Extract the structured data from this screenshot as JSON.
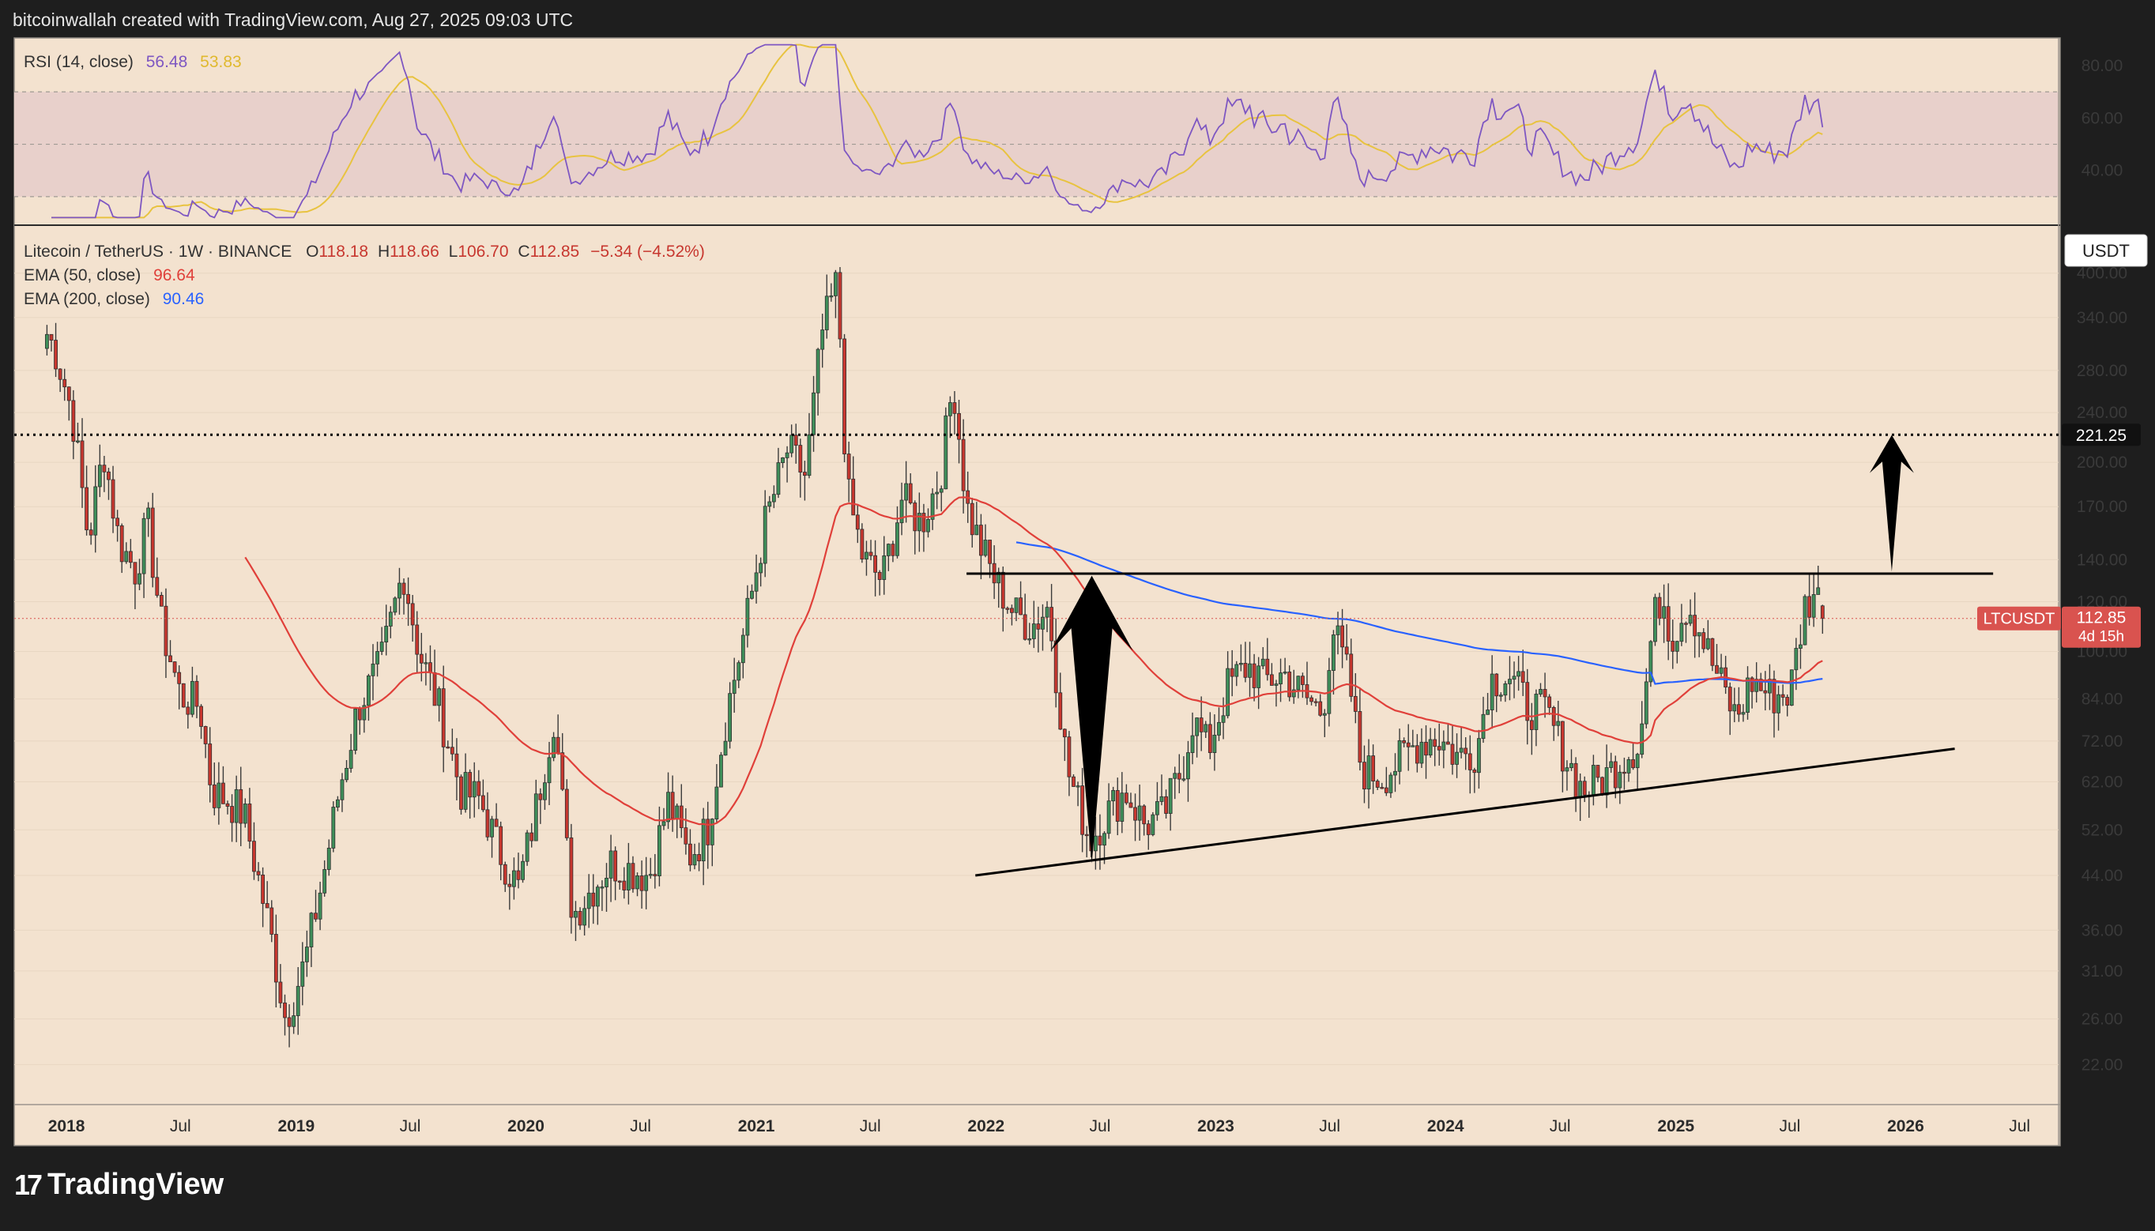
{
  "attribution": "bitcoinwallah created with TradingView.com, Aug 27, 2025 09:03 UTC",
  "brand": "TradingView",
  "colors": {
    "background": "#f3e2cf",
    "frame": "#1e1e1e",
    "bull": "#3f8f5a",
    "bear": "#c7372f",
    "rsi": "#7e57c2",
    "rsi_ma": "#e8c340",
    "ema50": "#e0403a",
    "ema200": "#2962ff",
    "price_tag": "#d9534f"
  },
  "rsi_pane": {
    "label": "RSI (14, close)",
    "value1": "56.48",
    "value2": "53.83",
    "levels": {
      "upper": 70,
      "middle": 50,
      "lower": 30
    },
    "ticks": [
      "80.00",
      "60.00",
      "40.00"
    ]
  },
  "legend": {
    "symbol": "Litecoin / TetherUS · 1W · BINANCE",
    "o_label": "O",
    "o": "118.18",
    "h_label": "H",
    "h": "118.66",
    "l_label": "L",
    "l": "106.70",
    "c_label": "C",
    "c": "112.85",
    "change": "−5.34 (−4.52%)",
    "ema50_label": "EMA (50, close)",
    "ema50_value": "96.64",
    "ema200_label": "EMA (200, close)",
    "ema200_value": "90.46"
  },
  "currency_button": "USDT",
  "ticker": {
    "symbol": "LTCUSDT",
    "price": "112.85",
    "countdown": "4d 15h"
  },
  "resistance_label": "221.25",
  "chart_data": {
    "type": "candlestick",
    "symbol": "LTCUSDT",
    "timeframe": "1W",
    "y_scale": "log",
    "ylim": [
      19,
      470
    ],
    "xlim": [
      "2017-10-10",
      "2026-09-01"
    ],
    "y_ticks": [
      "400.00",
      "340.00",
      "280.00",
      "240.00",
      "200.00",
      "170.00",
      "140.00",
      "120.00",
      "100.00",
      "84.00",
      "72.00",
      "62.00",
      "52.00",
      "44.00",
      "36.00",
      "31.00",
      "26.00",
      "22.00"
    ],
    "x_ticks": [
      "2018",
      "Jul",
      "2019",
      "Jul",
      "2020",
      "Jul",
      "2021",
      "Jul",
      "2022",
      "Jul",
      "2023",
      "Jul",
      "2024",
      "Jul",
      "2025",
      "Jul",
      "2026",
      "Jul"
    ],
    "price_anchors": [
      [
        "2017-12-01",
        320
      ],
      [
        "2017-12-15",
        300
      ],
      [
        "2018-01-10",
        240
      ],
      [
        "2018-02-05",
        150
      ],
      [
        "2018-03-01",
        210
      ],
      [
        "2018-03-25",
        150
      ],
      [
        "2018-04-20",
        135
      ],
      [
        "2018-05-10",
        160
      ],
      [
        "2018-06-01",
        110
      ],
      [
        "2018-07-01",
        85
      ],
      [
        "2018-08-01",
        82
      ],
      [
        "2018-08-20",
        60
      ],
      [
        "2018-09-15",
        58
      ],
      [
        "2018-10-10",
        55
      ],
      [
        "2018-11-20",
        36
      ],
      [
        "2018-12-15",
        26
      ],
      [
        "2019-01-15",
        32
      ],
      [
        "2019-02-15",
        45
      ],
      [
        "2019-03-10",
        60
      ],
      [
        "2019-04-10",
        82
      ],
      [
        "2019-05-15",
        95
      ],
      [
        "2019-06-20",
        135
      ],
      [
        "2019-07-15",
        100
      ],
      [
        "2019-08-15",
        82
      ],
      [
        "2019-09-20",
        60
      ],
      [
        "2019-10-20",
        58
      ],
      [
        "2019-11-20",
        48
      ],
      [
        "2019-12-20",
        42
      ],
      [
        "2020-01-15",
        55
      ],
      [
        "2020-02-15",
        80
      ],
      [
        "2020-03-15",
        38
      ],
      [
        "2020-04-15",
        42
      ],
      [
        "2020-05-15",
        46
      ],
      [
        "2020-06-15",
        45
      ],
      [
        "2020-07-15",
        44
      ],
      [
        "2020-08-15",
        58
      ],
      [
        "2020-09-15",
        47
      ],
      [
        "2020-10-15",
        52
      ],
      [
        "2020-11-15",
        80
      ],
      [
        "2020-12-15",
        110
      ],
      [
        "2021-01-15",
        160
      ],
      [
        "2021-02-20",
        210
      ],
      [
        "2021-03-20",
        190
      ],
      [
        "2021-04-15",
        320
      ],
      [
        "2021-05-10",
        390
      ],
      [
        "2021-05-25",
        180
      ],
      [
        "2021-06-20",
        140
      ],
      [
        "2021-07-20",
        130
      ],
      [
        "2021-08-20",
        175
      ],
      [
        "2021-09-20",
        160
      ],
      [
        "2021-10-20",
        190
      ],
      [
        "2021-11-10",
        270
      ],
      [
        "2021-12-01",
        170
      ],
      [
        "2021-12-20",
        150
      ],
      [
        "2022-01-15",
        130
      ],
      [
        "2022-02-15",
        115
      ],
      [
        "2022-03-15",
        110
      ],
      [
        "2022-04-10",
        118
      ],
      [
        "2022-05-10",
        65
      ],
      [
        "2022-06-15",
        50
      ],
      [
        "2022-07-10",
        55
      ],
      [
        "2022-08-10",
        60
      ],
      [
        "2022-09-10",
        53
      ],
      [
        "2022-10-10",
        55
      ],
      [
        "2022-11-08",
        65
      ],
      [
        "2022-11-25",
        78
      ],
      [
        "2022-12-20",
        70
      ],
      [
        "2023-01-20",
        88
      ],
      [
        "2023-02-20",
        95
      ],
      [
        "2023-03-20",
        90
      ],
      [
        "2023-04-20",
        92
      ],
      [
        "2023-05-20",
        85
      ],
      [
        "2023-06-20",
        80
      ],
      [
        "2023-07-05",
        110
      ],
      [
        "2023-08-01",
        90
      ],
      [
        "2023-08-20",
        65
      ],
      [
        "2023-09-20",
        63
      ],
      [
        "2023-10-20",
        67
      ],
      [
        "2023-11-20",
        72
      ],
      [
        "2023-12-20",
        73
      ],
      [
        "2024-01-20",
        68
      ],
      [
        "2024-02-20",
        70
      ],
      [
        "2024-03-10",
        90
      ],
      [
        "2024-04-10",
        92
      ],
      [
        "2024-05-10",
        82
      ],
      [
        "2024-06-10",
        80
      ],
      [
        "2024-07-10",
        68
      ],
      [
        "2024-08-05",
        60
      ],
      [
        "2024-09-10",
        63
      ],
      [
        "2024-10-10",
        68
      ],
      [
        "2024-11-05",
        72
      ],
      [
        "2024-11-25",
        110
      ],
      [
        "2024-12-10",
        125
      ],
      [
        "2024-12-25",
        105
      ],
      [
        "2025-01-20",
        120
      ],
      [
        "2025-02-05",
        110
      ],
      [
        "2025-03-01",
        95
      ],
      [
        "2025-04-07",
        78
      ],
      [
        "2025-05-01",
        90
      ],
      [
        "2025-06-01",
        85
      ],
      [
        "2025-07-01",
        86
      ],
      [
        "2025-07-25",
        118
      ],
      [
        "2025-08-10",
        125
      ],
      [
        "2025-08-27",
        112.85
      ]
    ],
    "last_candle": {
      "open": 118.18,
      "high": 118.66,
      "low": 106.7,
      "close": 112.85
    },
    "ema50_last": 96.64,
    "ema200_last": 90.46,
    "rsi_last": 56.48,
    "rsi_ma_last": 53.83,
    "annotations": {
      "resistance_level": 221.25,
      "horizontal_resistance": {
        "from": [
          "2021-12-01",
          133
        ],
        "to": [
          "2026-05-20",
          133
        ]
      },
      "rising_support": {
        "from": [
          "2021-12-15",
          44
        ],
        "to": [
          "2026-03-20",
          70
        ]
      },
      "arrow_up_1": {
        "from": [
          "2022-06-18",
          46
        ],
        "to": [
          "2022-06-18",
          132
        ]
      },
      "arrow_up_2": {
        "from": [
          "2025-12-10",
          134
        ],
        "to": [
          "2025-12-10",
          221
        ]
      }
    }
  }
}
